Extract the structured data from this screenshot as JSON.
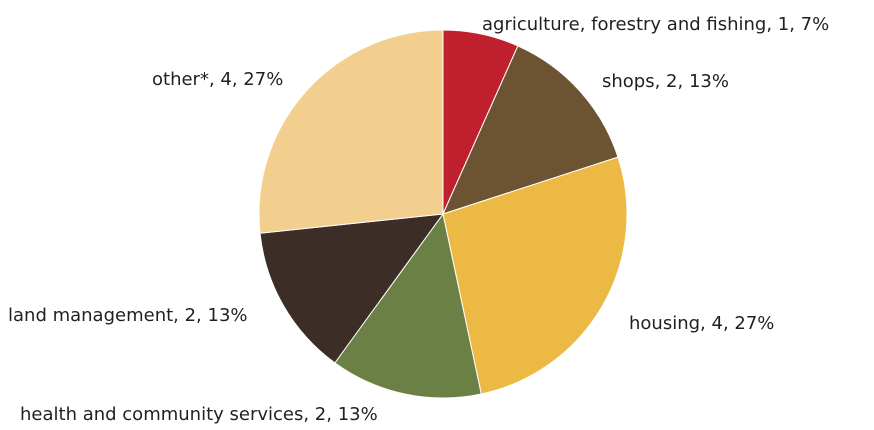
{
  "chart_data": {
    "type": "pie",
    "title": "",
    "slices": [
      {
        "name": "agriculture, forestry and fishing",
        "value": 1,
        "percent": 7,
        "color": "#c01f2d",
        "label": "agriculture, forestry and fishing, 1, 7%"
      },
      {
        "name": "shops",
        "value": 2,
        "percent": 13,
        "color": "#6c5332",
        "label": "shops, 2, 13%"
      },
      {
        "name": "housing",
        "value": 4,
        "percent": 27,
        "color": "#ebb944",
        "label": "housing, 4, 27%"
      },
      {
        "name": "health and community services",
        "value": 2,
        "percent": 13,
        "color": "#6b8045",
        "label": "health and community services, 2, 13%"
      },
      {
        "name": "land management",
        "value": 2,
        "percent": 13,
        "color": "#3d2d27",
        "label": "land management, 2, 13%"
      },
      {
        "name": "other*",
        "value": 4,
        "percent": 27,
        "color": "#f2cf8e",
        "label": "other*, 4, 27%"
      }
    ]
  }
}
